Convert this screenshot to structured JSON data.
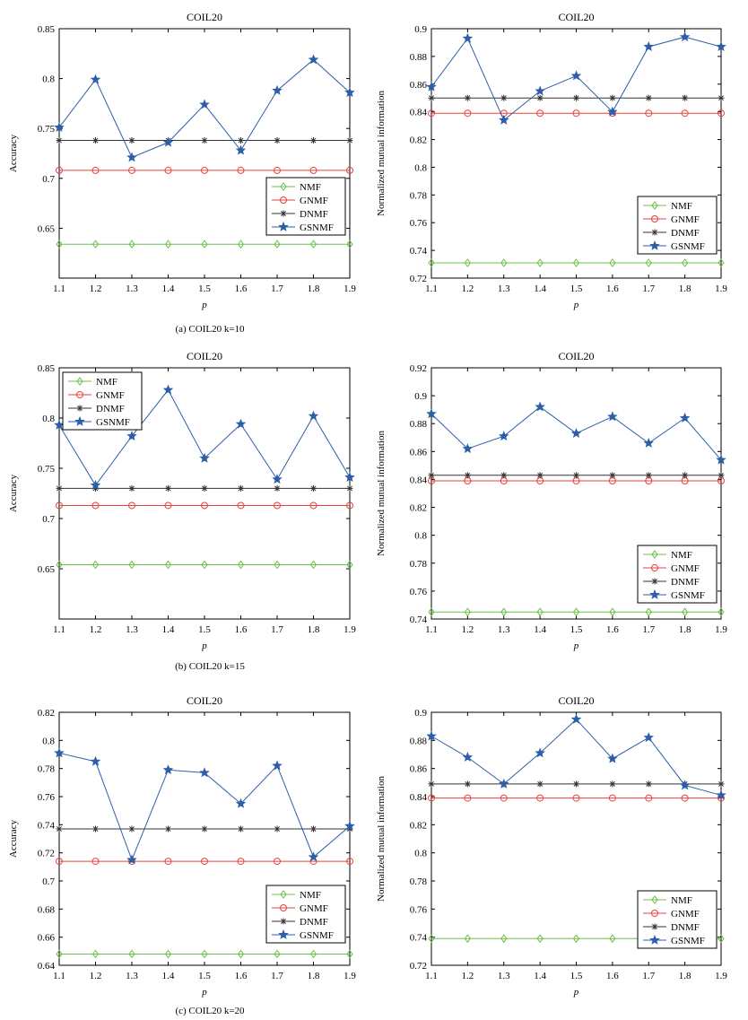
{
  "legend_labels": [
    "NMF",
    "GNMF",
    "DNMF",
    "GSNMF"
  ],
  "colors": {
    "NMF": "#6cc04a",
    "GNMF": "#e8413c",
    "DNMF": "#333333",
    "GSNMF": "#2d5fa8"
  },
  "markers": {
    "NMF": "diamond",
    "GNMF": "circle",
    "DNMF": "asterisk",
    "GSNMF": "star"
  },
  "captions": [
    "(a) COIL20 k=10",
    "(b) COIL20 k=15",
    "(c) COIL20 k=20"
  ],
  "chart_data": [
    {
      "type": "line",
      "title": "COIL20",
      "xlabel": "p",
      "ylabel": "Accuracy",
      "x": [
        1.1,
        1.2,
        1.3,
        1.4,
        1.5,
        1.6,
        1.7,
        1.8,
        1.9
      ],
      "xlim": [
        1.1,
        1.9
      ],
      "ylim": [
        0.6,
        0.85
      ],
      "yticks": [
        0.65,
        0.7,
        0.75,
        0.8,
        0.85
      ],
      "ytick_labels": [
        "0.65",
        "0.7",
        "0.75",
        "0.8",
        "0.85"
      ],
      "legend_position": "lower-right",
      "series": [
        {
          "name": "NMF",
          "values": [
            0.634,
            0.634,
            0.634,
            0.634,
            0.634,
            0.634,
            0.634,
            0.634,
            0.634
          ]
        },
        {
          "name": "GNMF",
          "values": [
            0.708,
            0.708,
            0.708,
            0.708,
            0.708,
            0.708,
            0.708,
            0.708,
            0.708
          ]
        },
        {
          "name": "DNMF",
          "values": [
            0.738,
            0.738,
            0.738,
            0.738,
            0.738,
            0.738,
            0.738,
            0.738,
            0.738
          ]
        },
        {
          "name": "GSNMF",
          "values": [
            0.751,
            0.799,
            0.721,
            0.736,
            0.774,
            0.728,
            0.788,
            0.819,
            0.786
          ]
        }
      ]
    },
    {
      "type": "line",
      "title": "COIL20",
      "xlabel": "p",
      "ylabel": "Normalized mutual information",
      "x": [
        1.1,
        1.2,
        1.3,
        1.4,
        1.5,
        1.6,
        1.7,
        1.8,
        1.9
      ],
      "xlim": [
        1.1,
        1.9
      ],
      "ylim": [
        0.72,
        0.9
      ],
      "yticks": [
        0.72,
        0.74,
        0.76,
        0.78,
        0.8,
        0.82,
        0.84,
        0.86,
        0.88,
        0.9
      ],
      "ytick_labels": [
        "0.72",
        "0.74",
        "0.76",
        "0.78",
        "0.8",
        "0.82",
        "0.84",
        "0.86",
        "0.88",
        "0.9"
      ],
      "legend_position": "lower-right",
      "series": [
        {
          "name": "NMF",
          "values": [
            0.731,
            0.731,
            0.731,
            0.731,
            0.731,
            0.731,
            0.731,
            0.731,
            0.731
          ]
        },
        {
          "name": "GNMF",
          "values": [
            0.839,
            0.839,
            0.839,
            0.839,
            0.839,
            0.839,
            0.839,
            0.839,
            0.839
          ]
        },
        {
          "name": "DNMF",
          "values": [
            0.85,
            0.85,
            0.85,
            0.85,
            0.85,
            0.85,
            0.85,
            0.85,
            0.85
          ]
        },
        {
          "name": "GSNMF",
          "values": [
            0.858,
            0.893,
            0.834,
            0.855,
            0.866,
            0.84,
            0.887,
            0.894,
            0.887
          ]
        }
      ]
    },
    {
      "type": "line",
      "title": "COIL20",
      "xlabel": "p",
      "ylabel": "Accuracy",
      "x": [
        1.1,
        1.2,
        1.3,
        1.4,
        1.5,
        1.6,
        1.7,
        1.8,
        1.9
      ],
      "xlim": [
        1.1,
        1.9
      ],
      "ylim": [
        0.6,
        0.85
      ],
      "yticks": [
        0.65,
        0.7,
        0.75,
        0.8,
        0.85
      ],
      "ytick_labels": [
        "0.65",
        "0.7",
        "0.75",
        "0.8",
        "0.85"
      ],
      "legend_position": "upper-left",
      "series": [
        {
          "name": "NMF",
          "values": [
            0.654,
            0.654,
            0.654,
            0.654,
            0.654,
            0.654,
            0.654,
            0.654,
            0.654
          ]
        },
        {
          "name": "GNMF",
          "values": [
            0.713,
            0.713,
            0.713,
            0.713,
            0.713,
            0.713,
            0.713,
            0.713,
            0.713
          ]
        },
        {
          "name": "DNMF",
          "values": [
            0.73,
            0.73,
            0.73,
            0.73,
            0.73,
            0.73,
            0.73,
            0.73,
            0.73
          ]
        },
        {
          "name": "GSNMF",
          "values": [
            0.793,
            0.733,
            0.782,
            0.828,
            0.76,
            0.794,
            0.739,
            0.802,
            0.741
          ]
        }
      ]
    },
    {
      "type": "line",
      "title": "COIL20",
      "xlabel": "p",
      "ylabel": "Normalized mutual information",
      "x": [
        1.1,
        1.2,
        1.3,
        1.4,
        1.5,
        1.6,
        1.7,
        1.8,
        1.9
      ],
      "xlim": [
        1.1,
        1.9
      ],
      "ylim": [
        0.74,
        0.92
      ],
      "yticks": [
        0.74,
        0.76,
        0.78,
        0.8,
        0.82,
        0.84,
        0.86,
        0.88,
        0.9,
        0.92
      ],
      "ytick_labels": [
        "0.74",
        "0.76",
        "0.78",
        "0.8",
        "0.82",
        "0.84",
        "0.86",
        "0.88",
        "0.9",
        "0.92"
      ],
      "legend_position": "lower-right",
      "series": [
        {
          "name": "NMF",
          "values": [
            0.745,
            0.745,
            0.745,
            0.745,
            0.745,
            0.745,
            0.745,
            0.745,
            0.745
          ]
        },
        {
          "name": "GNMF",
          "values": [
            0.839,
            0.839,
            0.839,
            0.839,
            0.839,
            0.839,
            0.839,
            0.839,
            0.839
          ]
        },
        {
          "name": "DNMF",
          "values": [
            0.843,
            0.843,
            0.843,
            0.843,
            0.843,
            0.843,
            0.843,
            0.843,
            0.843
          ]
        },
        {
          "name": "GSNMF",
          "values": [
            0.887,
            0.862,
            0.871,
            0.892,
            0.873,
            0.885,
            0.866,
            0.884,
            0.854
          ]
        }
      ]
    },
    {
      "type": "line",
      "title": "COIL20",
      "xlabel": "p",
      "ylabel": "Accuracy",
      "x": [
        1.1,
        1.2,
        1.3,
        1.4,
        1.5,
        1.6,
        1.7,
        1.8,
        1.9
      ],
      "xlim": [
        1.1,
        1.9
      ],
      "ylim": [
        0.64,
        0.82
      ],
      "yticks": [
        0.64,
        0.66,
        0.68,
        0.7,
        0.72,
        0.74,
        0.76,
        0.78,
        0.8,
        0.82
      ],
      "ytick_labels": [
        "0.64",
        "0.66",
        "0.68",
        "0.7",
        "0.72",
        "0.74",
        "0.76",
        "0.78",
        "0.8",
        "0.82"
      ],
      "legend_position": "lower-right",
      "series": [
        {
          "name": "NMF",
          "values": [
            0.648,
            0.648,
            0.648,
            0.648,
            0.648,
            0.648,
            0.648,
            0.648,
            0.648
          ]
        },
        {
          "name": "GNMF",
          "values": [
            0.714,
            0.714,
            0.714,
            0.714,
            0.714,
            0.714,
            0.714,
            0.714,
            0.714
          ]
        },
        {
          "name": "DNMF",
          "values": [
            0.737,
            0.737,
            0.737,
            0.737,
            0.737,
            0.737,
            0.737,
            0.737,
            0.737
          ]
        },
        {
          "name": "GSNMF",
          "values": [
            0.791,
            0.785,
            0.715,
            0.779,
            0.777,
            0.755,
            0.782,
            0.717,
            0.739
          ]
        }
      ]
    },
    {
      "type": "line",
      "title": "COIL20",
      "xlabel": "p",
      "ylabel": "Normalized mutual information",
      "x": [
        1.1,
        1.2,
        1.3,
        1.4,
        1.5,
        1.6,
        1.7,
        1.8,
        1.9
      ],
      "xlim": [
        1.1,
        1.9
      ],
      "ylim": [
        0.72,
        0.9
      ],
      "yticks": [
        0.72,
        0.74,
        0.76,
        0.78,
        0.8,
        0.82,
        0.84,
        0.86,
        0.88,
        0.9
      ],
      "ytick_labels": [
        "0.72",
        "0.74",
        "0.76",
        "0.78",
        "0.8",
        "0.82",
        "0.84",
        "0.86",
        "0.88",
        "0.9"
      ],
      "legend_position": "lower-right",
      "series": [
        {
          "name": "NMF",
          "values": [
            0.739,
            0.739,
            0.739,
            0.739,
            0.739,
            0.739,
            0.739,
            0.739,
            0.739
          ]
        },
        {
          "name": "GNMF",
          "values": [
            0.839,
            0.839,
            0.839,
            0.839,
            0.839,
            0.839,
            0.839,
            0.839,
            0.839
          ]
        },
        {
          "name": "DNMF",
          "values": [
            0.849,
            0.849,
            0.849,
            0.849,
            0.849,
            0.849,
            0.849,
            0.849,
            0.849
          ]
        },
        {
          "name": "GSNMF",
          "values": [
            0.883,
            0.868,
            0.849,
            0.871,
            0.895,
            0.867,
            0.882,
            0.848,
            0.841
          ]
        }
      ]
    }
  ]
}
